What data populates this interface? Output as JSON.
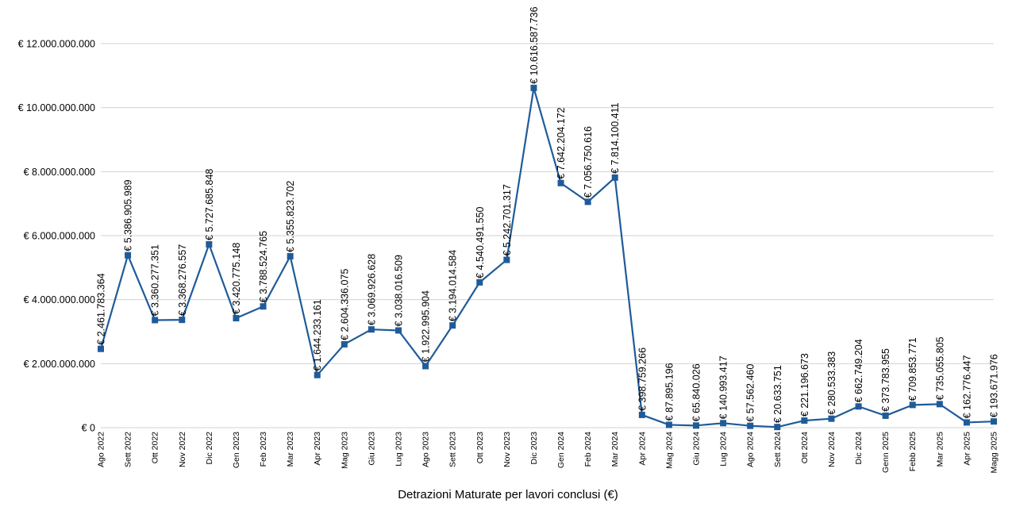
{
  "chart_data": {
    "type": "line",
    "title": "",
    "xlabel": "Detrazioni Maturate per lavori conclusi (€)",
    "ylabel": "",
    "ylim": [
      0,
      12000000000
    ],
    "yticks": [
      0,
      2000000000,
      4000000000,
      6000000000,
      8000000000,
      10000000000,
      12000000000
    ],
    "ytick_labels": [
      "€ 0",
      "€ 2.000.000.000",
      "€ 4.000.000.000",
      "€ 6.000.000.000",
      "€ 8.000.000.000",
      "€ 10.000.000.000",
      "€ 12.000.000.000"
    ],
    "grid": true,
    "legend": "none",
    "line_color": "#1f5b99",
    "grid_color": "#d3d3d3",
    "categories": [
      "Ago 2022",
      "Sett 2022",
      "Ott 2022",
      "Nov 2022",
      "Dic 2022",
      "Gen 2023",
      "Feb 2023",
      "Mar 2023",
      "Apr 2023",
      "Mag 2023",
      "Giu 2023",
      "Lug 2023",
      "Ago 2023",
      "Sett 2023",
      "Ott 2023",
      "Nov 2023",
      "Dic 2023",
      "Gen 2024",
      "Feb 2024",
      "Mar 2024",
      "Apr 2024",
      "Mag 2024",
      "Giu 2024",
      "Lug 2024",
      "Ago 2024",
      "Sett 2024",
      "Ott 2024",
      "Nov 2024",
      "Dic 2024",
      "Genn 2025",
      "Febb 2025",
      "Mar 2025",
      "Apr 2025",
      "Magg 2025"
    ],
    "values": [
      2461783364,
      5386905989,
      3360277351,
      3368276557,
      5727685848,
      3420775148,
      3788524765,
      5355823702,
      1644233161,
      2604336075,
      3069926628,
      3038016509,
      1922995904,
      3194014584,
      4540491550,
      5242701317,
      10616587736,
      7642204172,
      7056750616,
      7814100411,
      398759266,
      87895196,
      65840026,
      140993417,
      57562460,
      20633751,
      221196673,
      280533383,
      662749204,
      373783955,
      709853771,
      735055805,
      162776447,
      193671976
    ],
    "data_labels": [
      "€ 2.461.783.364",
      "€ 5.386.905.989",
      "€ 3.360.277.351",
      "€ 3.368.276.557",
      "€ 5.727.685.848",
      "€ 3.420.775.148",
      "€ 3.788.524.765",
      "€ 5.355.823.702",
      "€ 1.644.233.161",
      "€ 2.604.336.075",
      "€ 3.069.926.628",
      "€ 3.038.016.509",
      "€ 1.922.995.904",
      "€ 3.194.014.584",
      "€ 4.540.491.550",
      "€ 5.242.701.317",
      "€ 10.616.587.736",
      "€ 7.642.204.172",
      "€ 7.056.750.616",
      "€ 7.814.100.411",
      "€ 398.759.266",
      "€ 87.895.196",
      "€ 65.840.026",
      "€ 140.993.417",
      "€ 57.562.460",
      "€ 20.633.751",
      "€ 221.196.673",
      "€ 280.533.383",
      "€ 662.749.204",
      "€ 373.783.955",
      "€ 709.853.771",
      "€ 735.055.805",
      "€ 162.776.447",
      "€ 193.671.976"
    ]
  }
}
